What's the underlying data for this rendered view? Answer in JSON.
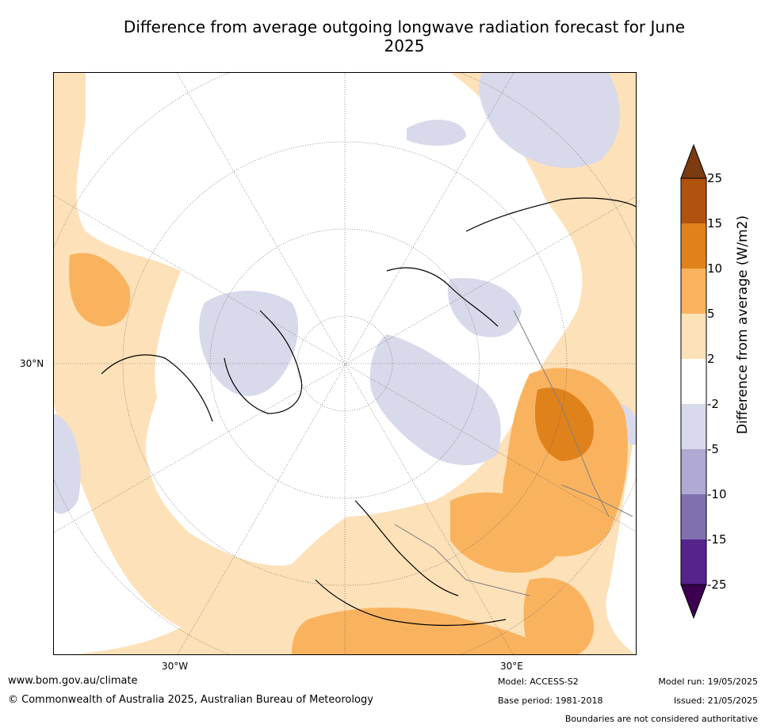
{
  "title": "Difference from average outgoing longwave radiation forecast for June 2025",
  "map": {
    "projection": "north-polar-stereographic",
    "lat_label": "30°N",
    "lon_labels": [
      "30°W",
      "30°E"
    ],
    "ocean_fill": "white",
    "boundary_color": "#808080",
    "coastline_color": "#000000"
  },
  "colorbar": {
    "label": "Difference from average (W/m2)",
    "ticks": [
      "25",
      "15",
      "10",
      "5",
      "2",
      "-2",
      "-5",
      "-10",
      "-15",
      "-25"
    ],
    "colors": {
      "above_25": "#7a3b10",
      "15_to_25": "#b0530e",
      "10_to_15": "#e0821c",
      "5_to_10": "#f9b35f",
      "2_to_5": "#fde1b8",
      "-2_to_2": "#ffffff",
      "-5_to_-2": "#d9d9ec",
      "-10_to_-5": "#b0a9d3",
      "-15_to_-10": "#8070b0",
      "-25_to_-15": "#55238c",
      "below_-25": "#3b0050"
    }
  },
  "footer": {
    "url": "www.bom.gov.au/climate",
    "copyright": "© Commonwealth of Australia 2025, Australian Bureau of Meteorology",
    "model": "Model: ACCESS-S2",
    "base_period": "Base period: 1981-2018",
    "model_run": "Model run: 19/05/2025",
    "issued": "Issued: 21/05/2025",
    "disclaimer": "Boundaries are not considered authoritative"
  }
}
